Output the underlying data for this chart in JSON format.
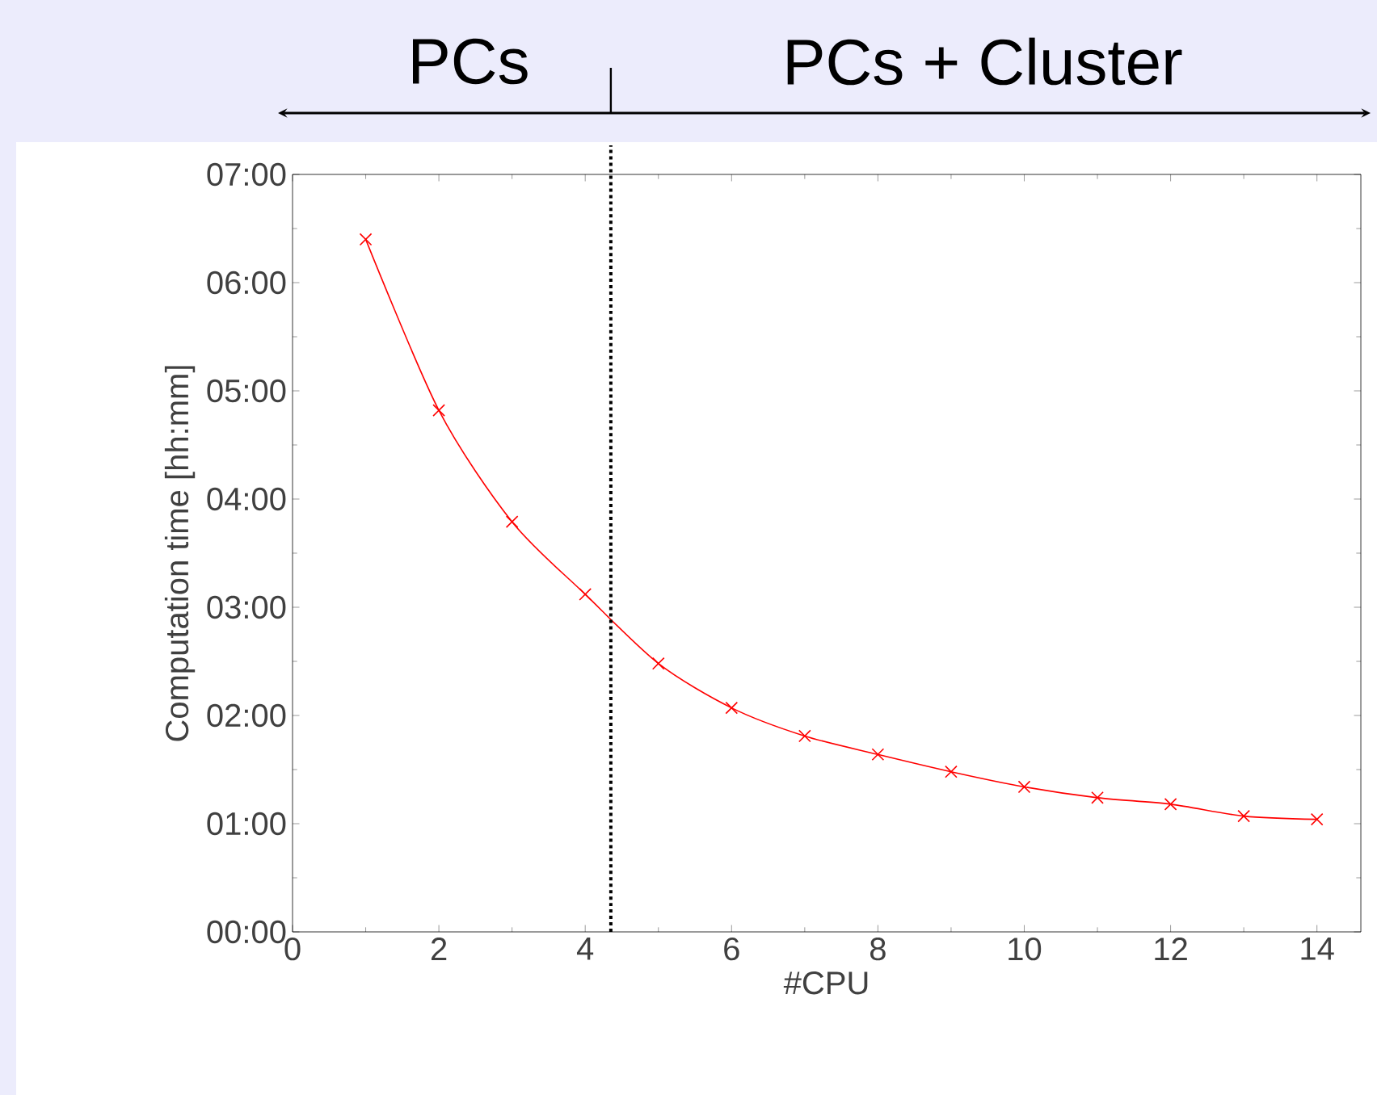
{
  "chart_data": {
    "type": "line",
    "xlabel": "#CPU",
    "ylabel": "Computation time [hh:mm]",
    "x": [
      1,
      2,
      3,
      4,
      5,
      6,
      7,
      8,
      9,
      10,
      11,
      12,
      13,
      14
    ],
    "series": [
      {
        "color": "#ff0000",
        "values": [
          6.4,
          4.82,
          3.79,
          3.12,
          2.48,
          2.07,
          1.81,
          1.64,
          1.48,
          1.34,
          1.24,
          1.18,
          1.07,
          1.04
        ]
      }
    ],
    "xlim": [
      0,
      14.6
    ],
    "xticks": [
      0,
      2,
      4,
      6,
      8,
      10,
      12,
      14
    ],
    "ylim": [
      0,
      7
    ],
    "yticks": [
      {
        "value": 0,
        "label": "00:00"
      },
      {
        "value": 1,
        "label": "01:00"
      },
      {
        "value": 2,
        "label": "02:00"
      },
      {
        "value": 3,
        "label": "03:00"
      },
      {
        "value": 4,
        "label": "04:00"
      },
      {
        "value": 5,
        "label": "05:00"
      },
      {
        "value": 6,
        "label": "06:00"
      },
      {
        "value": 7,
        "label": "07:00"
      }
    ],
    "ref_lines": [
      {
        "axis": "x",
        "value": 4.35
      }
    ],
    "annotations": [
      "PCs",
      "PCs + Cluster"
    ],
    "marker": "cross",
    "line_style": "solid"
  }
}
